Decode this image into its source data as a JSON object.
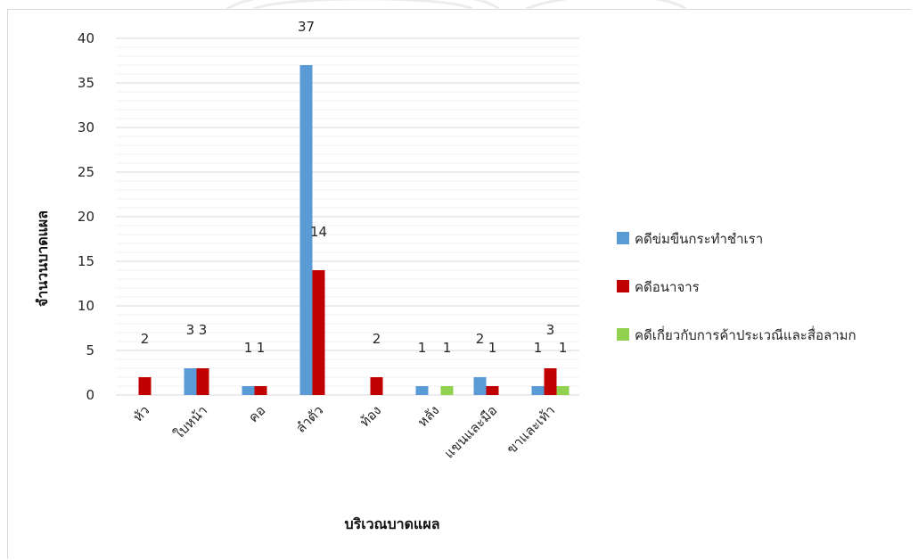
{
  "chart_data": {
    "type": "bar",
    "categories": [
      "หัว",
      "ใบหน้า",
      "คอ",
      "ลำตัว",
      "ท้อง",
      "หลัง",
      "แขนและมือ",
      "ขาและเท้า"
    ],
    "series": [
      {
        "name": "คดีข่มขืนกระทำชำเรา",
        "color": "#5b9bd5",
        "values": [
          0,
          3,
          1,
          37,
          0,
          1,
          2,
          1
        ],
        "labels": [
          "",
          "3",
          "1",
          "37",
          "",
          "1",
          "2",
          "1"
        ]
      },
      {
        "name": "คดีอนาจาร",
        "color": "#c00000",
        "values": [
          2,
          3,
          1,
          14,
          2,
          0,
          1,
          3
        ],
        "labels": [
          "2",
          "3",
          "1",
          "14",
          "2",
          "",
          "1",
          "3"
        ]
      },
      {
        "name": "คดีเกี่ยวกับการค้าประเวณีและสื่อลามก",
        "color": "#92d050",
        "values": [
          0,
          0,
          0,
          0,
          0,
          1,
          0,
          1
        ],
        "labels": [
          "",
          "",
          "",
          "",
          "",
          "1",
          "",
          "1"
        ]
      }
    ],
    "xlabel": "บริเวณบาดแผล",
    "ylabel": "จำนวนบาดแผล",
    "ylim": [
      0,
      40
    ],
    "yticks": [
      0,
      5,
      10,
      15,
      20,
      25,
      30,
      35,
      40
    ],
    "grid": true,
    "legend_position": "right"
  }
}
